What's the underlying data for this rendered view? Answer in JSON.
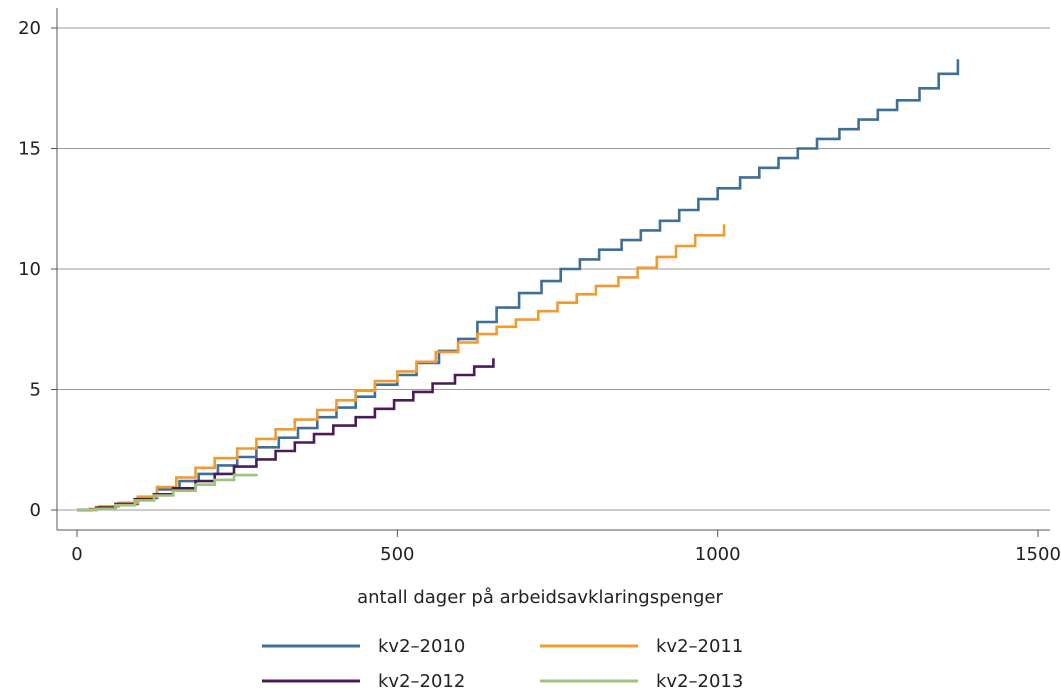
{
  "chart_data": {
    "type": "line",
    "title": "",
    "xlabel": "antall dager på arbeidsavklaringspenger",
    "ylabel": "",
    "xlim": [
      0,
      1500
    ],
    "ylim": [
      0,
      20
    ],
    "xticks": [
      0,
      500,
      1000,
      1500
    ],
    "yticks": [
      0,
      5,
      10,
      15,
      20
    ],
    "grid": "horizontal",
    "legend": "bottom",
    "step": true,
    "series": [
      {
        "name": "kv2–2010",
        "color": "#3e6f97",
        "x": [
          0,
          20,
          35,
          60,
          95,
          125,
          160,
          190,
          220,
          250,
          280,
          315,
          345,
          375,
          405,
          435,
          465,
          500,
          530,
          565,
          595,
          625,
          655,
          690,
          725,
          755,
          785,
          815,
          850,
          880,
          910,
          940,
          970,
          1000,
          1035,
          1065,
          1095,
          1125,
          1155,
          1190,
          1220,
          1250,
          1280,
          1315,
          1345,
          1375
        ],
        "y": [
          0,
          0.05,
          0.12,
          0.25,
          0.5,
          0.85,
          1.2,
          1.5,
          1.85,
          2.2,
          2.6,
          3.0,
          3.4,
          3.85,
          4.25,
          4.7,
          5.2,
          5.6,
          6.1,
          6.6,
          7.1,
          7.8,
          8.4,
          9.0,
          9.5,
          10.0,
          10.4,
          10.8,
          11.2,
          11.6,
          12.0,
          12.45,
          12.9,
          13.35,
          13.8,
          14.2,
          14.6,
          15.0,
          15.4,
          15.8,
          16.2,
          16.6,
          17.0,
          17.5,
          18.1,
          18.7
        ]
      },
      {
        "name": "kv2–2011",
        "color": "#f29a2e",
        "x": [
          0,
          20,
          35,
          65,
          95,
          125,
          155,
          185,
          215,
          250,
          280,
          310,
          340,
          375,
          405,
          435,
          465,
          500,
          530,
          560,
          595,
          625,
          655,
          685,
          720,
          750,
          780,
          810,
          845,
          875,
          905,
          935,
          965,
          1010
        ],
        "y": [
          0,
          0.05,
          0.15,
          0.3,
          0.55,
          0.95,
          1.35,
          1.75,
          2.15,
          2.55,
          2.95,
          3.35,
          3.75,
          4.15,
          4.55,
          4.95,
          5.35,
          5.75,
          6.15,
          6.55,
          6.95,
          7.3,
          7.6,
          7.9,
          8.25,
          8.6,
          8.95,
          9.3,
          9.65,
          10.05,
          10.5,
          10.95,
          11.4,
          11.85
        ]
      },
      {
        "name": "kv2–2012",
        "color": "#4b1b58",
        "x": [
          0,
          30,
          60,
          90,
          120,
          150,
          185,
          215,
          245,
          280,
          310,
          340,
          370,
          400,
          435,
          465,
          495,
          525,
          555,
          590,
          620,
          650
        ],
        "y": [
          0,
          0.1,
          0.25,
          0.45,
          0.65,
          0.9,
          1.2,
          1.5,
          1.8,
          2.1,
          2.45,
          2.8,
          3.15,
          3.5,
          3.85,
          4.2,
          4.55,
          4.9,
          5.25,
          5.6,
          5.95,
          6.3
        ]
      },
      {
        "name": "kv2–2013",
        "color": "#9bc47c",
        "x": [
          0,
          30,
          60,
          90,
          120,
          150,
          185,
          215,
          245,
          280
        ],
        "y": [
          0,
          0.05,
          0.2,
          0.4,
          0.6,
          0.8,
          1.05,
          1.25,
          1.45,
          1.5
        ]
      }
    ]
  }
}
